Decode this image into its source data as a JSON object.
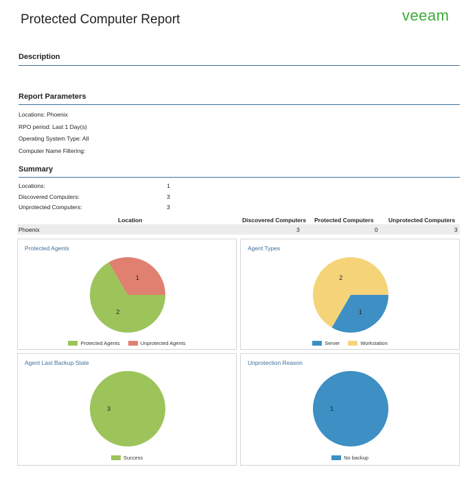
{
  "header": {
    "title": "Protected Computer Report",
    "logo_text": "veeam",
    "logo_color": "#3aaa35"
  },
  "sections": {
    "description": "Description",
    "report_parameters": "Report Parameters",
    "summary": "Summary"
  },
  "parameters": [
    "Locations: Phoenix",
    "RPO period: Last 1 Day(s)",
    "Operating System Type: All",
    "Computer Name Filtering:"
  ],
  "summary": [
    {
      "label": "Locations:",
      "value": "1"
    },
    {
      "label": "Discovered Computers:",
      "value": "3"
    },
    {
      "label": "Unprotected Computers:",
      "value": "3"
    }
  ],
  "table": {
    "headers": [
      "Location",
      "Discovered Computers",
      "Protected Computers",
      "Unprotected Computers"
    ],
    "rows": [
      {
        "location": "Phoenix",
        "discovered": "3",
        "protected": "0",
        "unprotected": "3"
      }
    ]
  },
  "colors": {
    "green": "#9dc35b",
    "salmon": "#e08070",
    "blue": "#3d8fc4",
    "yellow": "#f5d479",
    "accent": "#3c6e9c"
  },
  "chart_data": [
    {
      "type": "pie",
      "title": "Protected Agents",
      "categories": [
        "Protected Agents",
        "Unprotected Agents"
      ],
      "values": [
        2,
        1
      ],
      "value_labels": [
        "2",
        "1"
      ],
      "colors": [
        "#9dc35b",
        "#e08070"
      ],
      "legend": "bottom"
    },
    {
      "type": "pie",
      "title": "Agent Types",
      "categories": [
        "Server",
        "Workstation"
      ],
      "values": [
        1,
        2
      ],
      "value_labels": [
        "1",
        "2"
      ],
      "colors": [
        "#3d8fc4",
        "#f5d479"
      ],
      "legend": "bottom"
    },
    {
      "type": "pie",
      "title": "Agent Last Backup State",
      "categories": [
        "Success"
      ],
      "values": [
        3
      ],
      "value_labels": [
        "3"
      ],
      "colors": [
        "#9dc35b"
      ],
      "legend": "bottom"
    },
    {
      "type": "pie",
      "title": "Unprotection Reason",
      "categories": [
        "No backup"
      ],
      "values": [
        1
      ],
      "value_labels": [
        "1"
      ],
      "colors": [
        "#3d8fc4"
      ],
      "legend": "bottom"
    }
  ]
}
